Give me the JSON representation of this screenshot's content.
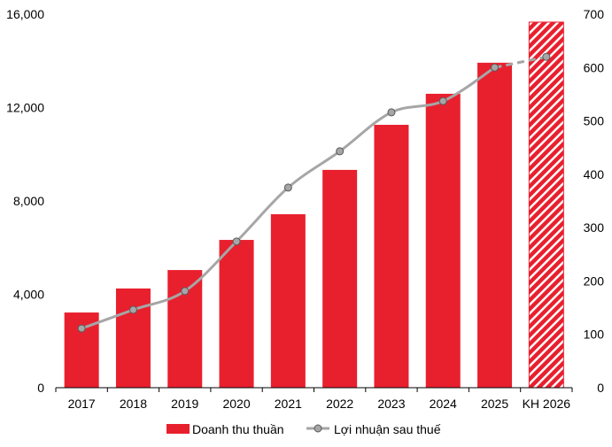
{
  "chart_data": {
    "type": "bar",
    "title": "",
    "categories": [
      "2017",
      "2018",
      "2019",
      "2020",
      "2021",
      "2022",
      "2023",
      "2024",
      "2025",
      "KH 2026"
    ],
    "series": [
      {
        "name": "Doanh thu thuần",
        "axis": "left",
        "kind": "bar",
        "color": "#e8202e",
        "values": [
          3220,
          4250,
          5040,
          6330,
          7430,
          9330,
          11260,
          12590,
          13920,
          15660
        ],
        "hatched_categories": [
          "KH 2026"
        ]
      },
      {
        "name": "Lợi nhuận sau thuế",
        "axis": "right",
        "kind": "line",
        "color": "#a6a6a6",
        "values": [
          111,
          146,
          181,
          274,
          375,
          443,
          516,
          537,
          600,
          620
        ],
        "dashed_from": "2025"
      }
    ],
    "y_left": {
      "min": 0,
      "max": 16000,
      "ticks": [
        "0",
        "4,000",
        "8,000",
        "12,000",
        "16,000"
      ],
      "tick_values": [
        0,
        4000,
        8000,
        12000,
        16000
      ]
    },
    "y_right": {
      "min": 0,
      "max": 700,
      "ticks": [
        "0",
        "100",
        "200",
        "300",
        "400",
        "500",
        "600",
        "700"
      ],
      "tick_values": [
        0,
        100,
        200,
        300,
        400,
        500,
        600,
        700
      ]
    },
    "grid": false,
    "legend_position": "bottom"
  }
}
